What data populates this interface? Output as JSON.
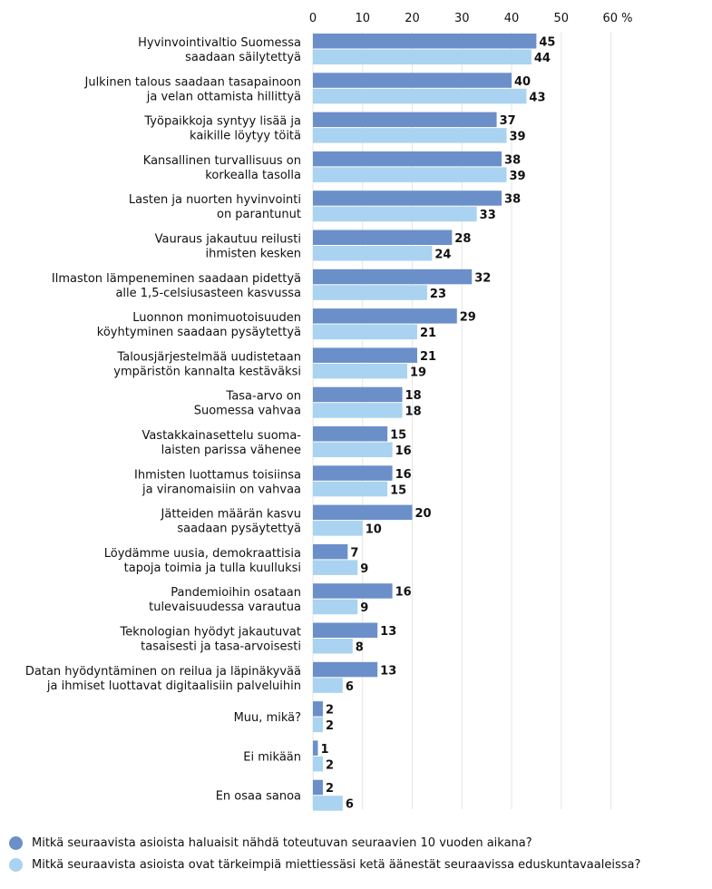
{
  "chart_data": {
    "type": "bar",
    "orientation": "horizontal",
    "categories": [
      [
        "Hyvinvointivaltio Suomessa",
        "saadaan säilytettyä"
      ],
      [
        "Julkinen talous saadaan tasapainoon",
        "ja velan ottamista hillittyä"
      ],
      [
        "Työpaikkoja syntyy lisää ja",
        "kaikille löytyy töitä"
      ],
      [
        "Kansallinen turvallisuus on",
        "korkealla tasolla"
      ],
      [
        "Lasten ja nuorten hyvinvointi",
        "on parantunut"
      ],
      [
        "Vauraus jakautuu reilusti",
        "ihmisten kesken"
      ],
      [
        "Ilmaston lämpeneminen saadaan pidettyä",
        "alle 1,5-celsiusasteen kasvussa"
      ],
      [
        "Luonnon monimuotoisuuden",
        "köyhtyminen saadaan pysäytettyä"
      ],
      [
        "Talousjärjestelmää uudistetaan",
        "ympäristön kannalta kestäväksi"
      ],
      [
        "Tasa-arvo on",
        "Suomessa vahvaa"
      ],
      [
        "Vastakkainasettelu suoma-",
        "laisten parissa vähenee"
      ],
      [
        "Ihmisten luottamus toisiinsa",
        "ja viranomaisiin on vahvaa"
      ],
      [
        "Jätteiden määrän kasvu",
        "saadaan pysäytettyä"
      ],
      [
        "Löydämme uusia, demokraattisia",
        "tapoja toimia ja tulla kuulluksi"
      ],
      [
        "Pandemioihin osataan",
        "tulevaisuudessa varautua"
      ],
      [
        "Teknologian hyödyt jakautuvat",
        "tasaisesti ja tasa-arvoisesti"
      ],
      [
        "Datan hyödyntäminen on reilua ja läpinäkyvää",
        "ja ihmiset luottavat digitaalisiin palveluihin"
      ],
      [
        "Muu, mikä?"
      ],
      [
        "Ei mikään"
      ],
      [
        "En osaa sanoa"
      ]
    ],
    "series": [
      {
        "name": "Mitkä seuraavista asioista haluaisit nähdä toteutuvan seuraavien 10 vuoden aikana?",
        "color": "#6b8fc9",
        "values": [
          45,
          40,
          37,
          38,
          38,
          28,
          32,
          29,
          21,
          18,
          15,
          16,
          20,
          7,
          16,
          13,
          13,
          2,
          1,
          2
        ]
      },
      {
        "name": "Mitkä seuraavista asioista ovat tärkeimpiä miettiessäsi ketä äänestät seuraavissa eduskuntavaaleissa?",
        "color": "#a9d3f0",
        "values": [
          44,
          43,
          39,
          39,
          33,
          24,
          23,
          21,
          19,
          18,
          16,
          15,
          10,
          9,
          9,
          8,
          6,
          2,
          2,
          6
        ]
      }
    ],
    "x_ticks": [
      "0",
      "10",
      "20",
      "30",
      "40",
      "50",
      "60 %"
    ],
    "xlim": [
      0,
      60
    ],
    "grid": true,
    "legend_position": "bottom"
  }
}
